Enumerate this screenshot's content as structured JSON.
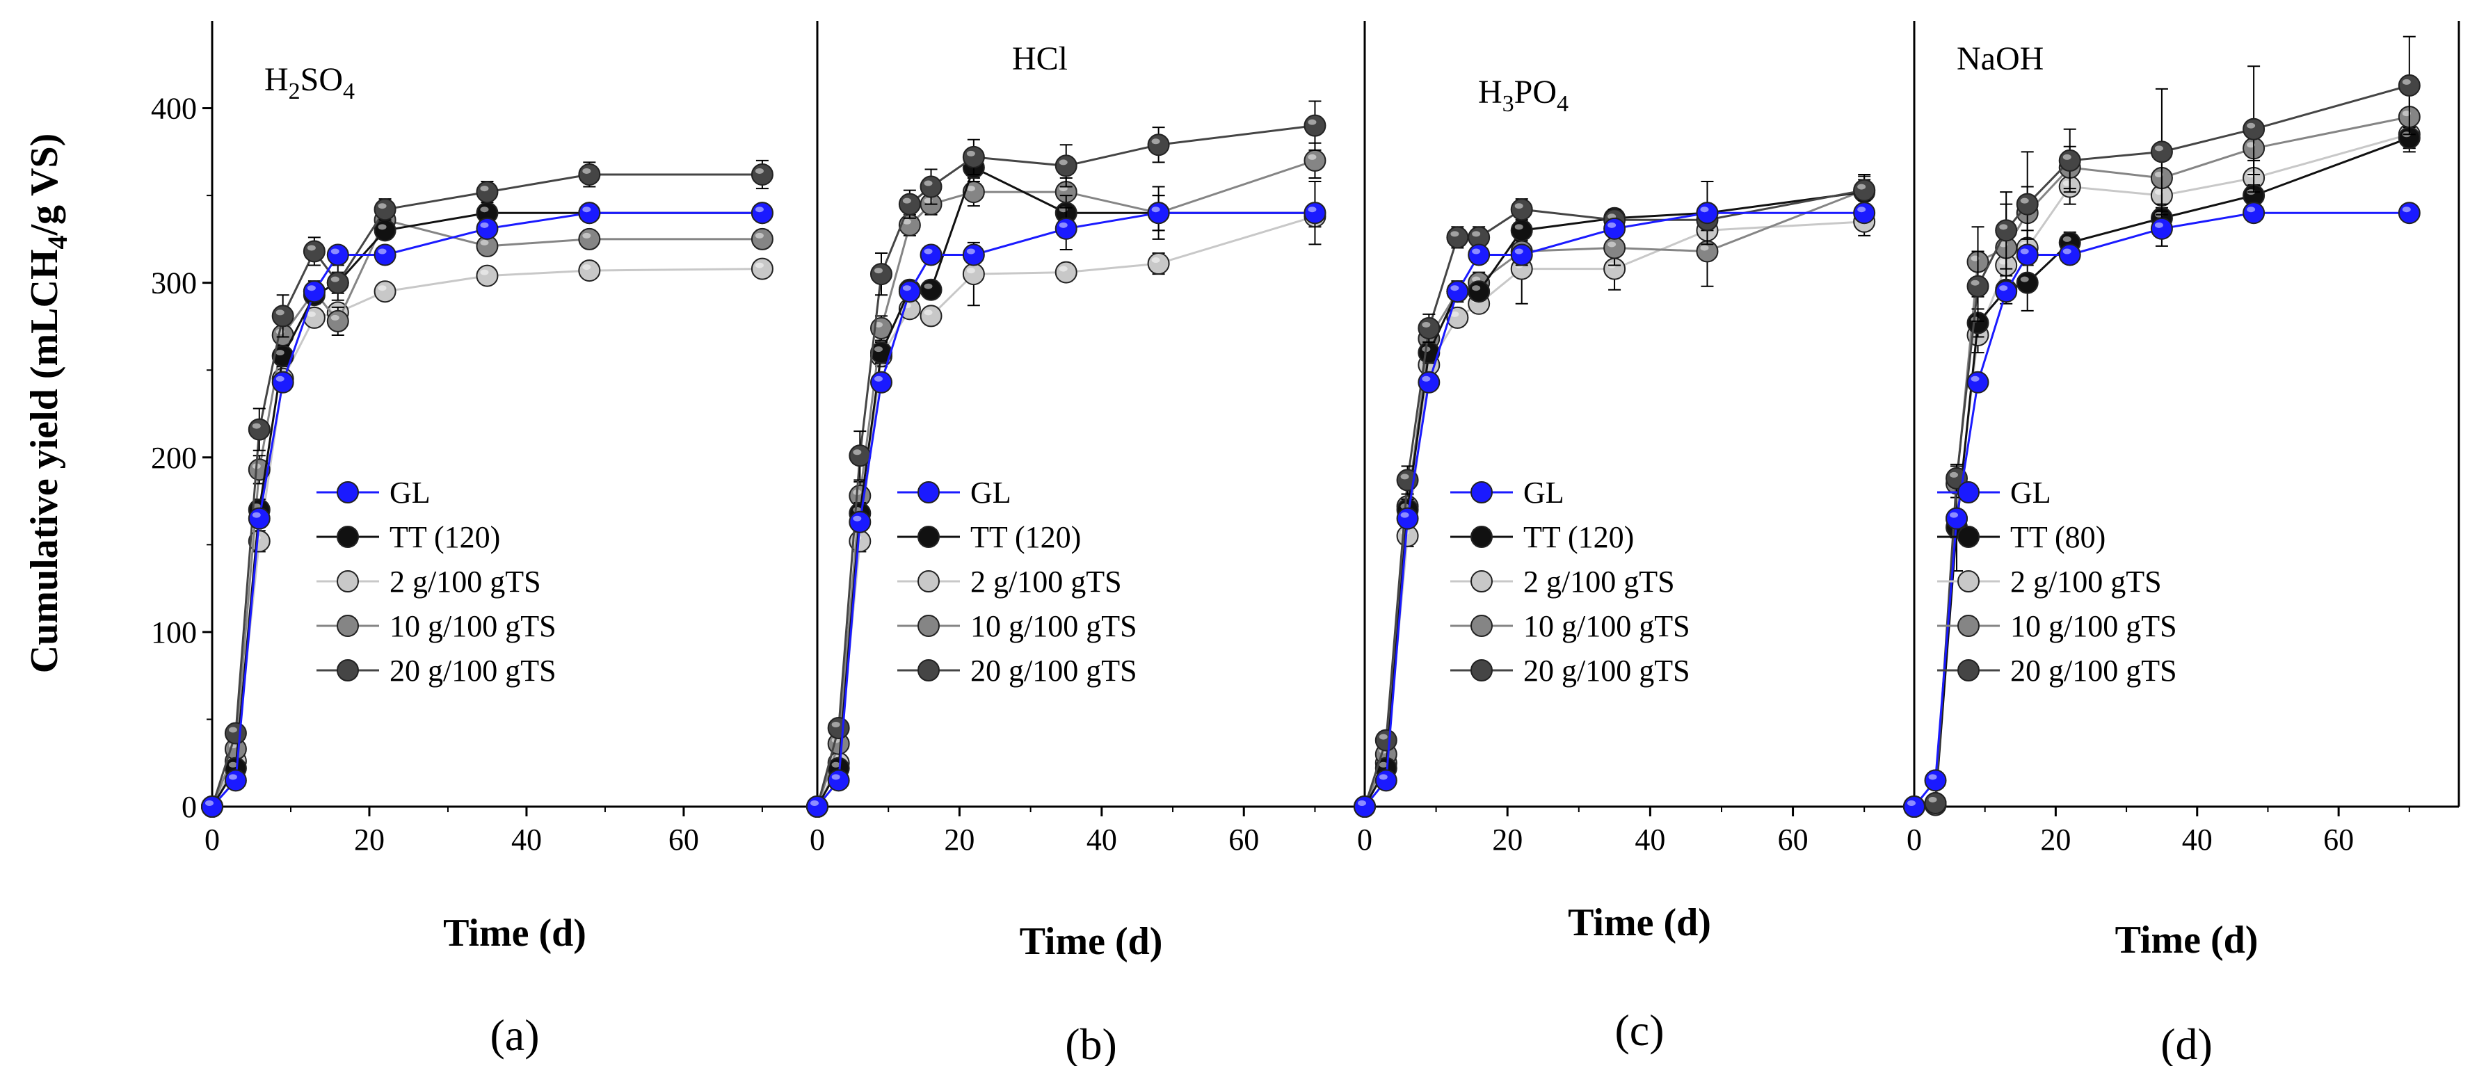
{
  "chart_data": {
    "type": "line",
    "ylabel": "Cumulative yield (mLCH4/g VS)",
    "ylabel_parts": {
      "pre": "Cumulative yield (mLCH",
      "sub": "4",
      "post": "/g VS)"
    },
    "xlabel": "Time (d)",
    "xlim": [
      0,
      77
    ],
    "ylim": [
      0,
      450
    ],
    "x_ticks": [
      0,
      20,
      40,
      60
    ],
    "x_tick_labels": [
      "0",
      "20",
      "40",
      "60"
    ],
    "y_ticks": [
      0,
      100,
      200,
      300,
      400
    ],
    "y_tick_labels": [
      "0",
      "100",
      "200",
      "300",
      "400"
    ],
    "x": [
      0,
      3,
      6,
      9,
      13,
      16,
      22,
      35,
      48,
      70
    ],
    "colors": {
      "GL": "#1a1aff",
      "TT": "#111111",
      "2 g/100 gTS": "#c8c8c8",
      "10 g/100 gTS": "#858585",
      "20 g/100 gTS": "#454545"
    },
    "panels": [
      {
        "sub_label": "(a)",
        "title": "H2SO4",
        "title_parts": [
          {
            "t": "H"
          },
          {
            "t": "2",
            "sub": true
          },
          {
            "t": "SO"
          },
          {
            "t": "4",
            "sub": true
          }
        ],
        "xlabel": "Time (d)",
        "series": [
          {
            "name": "GL",
            "values": [
              0,
              15,
              165,
              243,
              295,
              316,
              316,
              331,
              340,
              340
            ],
            "err": [
              0,
              2,
              4,
              4,
              4,
              4,
              3,
              3,
              3,
              3
            ]
          },
          {
            "name": "TT (120)",
            "values": [
              0,
              22,
              170,
              258,
              293,
              300,
              330,
              340,
              340,
              340
            ],
            "err": [
              0,
              3,
              6,
              6,
              5,
              6,
              5,
              4,
              4,
              4
            ]
          },
          {
            "name": "2 g/100 gTS",
            "values": [
              0,
              26,
              152,
              245,
              280,
              283,
              295,
              304,
              307,
              308
            ],
            "err": [
              0,
              3,
              6,
              5,
              5,
              5,
              4,
              4,
              4,
              4
            ]
          },
          {
            "name": "10 g/100 gTS",
            "values": [
              0,
              33,
              193,
              270,
              295,
              278,
              336,
              321,
              325,
              325
            ],
            "err": [
              0,
              4,
              8,
              7,
              6,
              8,
              6,
              5,
              5,
              5
            ]
          },
          {
            "name": "20 g/100 gTS",
            "values": [
              0,
              42,
              216,
              281,
              318,
              300,
              342,
              352,
              362,
              362
            ],
            "err": [
              0,
              5,
              12,
              12,
              8,
              10,
              6,
              6,
              7,
              8
            ]
          }
        ]
      },
      {
        "sub_label": "(b)",
        "title": "HCl",
        "title_parts": [
          {
            "t": "HCl"
          }
        ],
        "xlabel": "Time (d)",
        "series": [
          {
            "name": "GL",
            "values": [
              0,
              15,
              163,
              243,
              295,
              316,
              316,
              331,
              340,
              340
            ],
            "err": [
              0,
              2,
              4,
              4,
              4,
              5,
              5,
              12,
              10,
              5
            ]
          },
          {
            "name": "TT (120)",
            "values": [
              0,
              22,
              168,
              260,
              296,
              296,
              366,
              340,
              340,
              340
            ],
            "err": [
              0,
              3,
              6,
              6,
              5,
              5,
              8,
              10,
              15,
              18
            ]
          },
          {
            "name": "2 g/100 gTS",
            "values": [
              0,
              25,
              152,
              258,
              285,
              281,
              305,
              306,
              311,
              338
            ],
            "err": [
              0,
              3,
              6,
              6,
              5,
              5,
              18,
              5,
              6,
              6
            ]
          },
          {
            "name": "10 g/100 gTS",
            "values": [
              0,
              36,
              178,
              274,
              333,
              345,
              352,
              352,
              340,
              370
            ],
            "err": [
              0,
              4,
              8,
              7,
              6,
              6,
              8,
              8,
              10,
              10
            ]
          },
          {
            "name": "20 g/100 gTS",
            "values": [
              0,
              45,
              201,
              305,
              345,
              355,
              372,
              367,
              379,
              390
            ],
            "err": [
              0,
              5,
              14,
              12,
              8,
              10,
              10,
              12,
              10,
              14
            ]
          }
        ]
      },
      {
        "sub_label": "(c)",
        "title": "H3PO4",
        "title_parts": [
          {
            "t": "H"
          },
          {
            "t": "3",
            "sub": true
          },
          {
            "t": "PO"
          },
          {
            "t": "4",
            "sub": true
          }
        ],
        "xlabel": "Time (d)",
        "series": [
          {
            "name": "GL",
            "values": [
              0,
              15,
              165,
              243,
              295,
              316,
              316,
              331,
              340,
              340
            ],
            "err": [
              0,
              2,
              4,
              4,
              4,
              4,
              4,
              4,
              4,
              4
            ]
          },
          {
            "name": "TT (120)",
            "values": [
              0,
              22,
              170,
              260,
              295,
              295,
              330,
              337,
              340,
              352
            ],
            "err": [
              0,
              3,
              6,
              6,
              5,
              5,
              6,
              5,
              18,
              10
            ]
          },
          {
            "name": "2 g/100 gTS",
            "values": [
              0,
              25,
              155,
              253,
              280,
              288,
              308,
              308,
              330,
              335
            ],
            "err": [
              0,
              3,
              6,
              5,
              5,
              5,
              20,
              12,
              8,
              8
            ]
          },
          {
            "name": "10 g/100 gTS",
            "values": [
              0,
              30,
              172,
              268,
              295,
              300,
              318,
              320,
              318,
              353
            ],
            "err": [
              0,
              4,
              7,
              6,
              6,
              6,
              8,
              10,
              20,
              8
            ]
          },
          {
            "name": "20 g/100 gTS",
            "values": [
              0,
              38,
              187,
              274,
              326,
              326,
              342,
              336,
              336,
              353
            ],
            "err": [
              0,
              5,
              8,
              8,
              6,
              6,
              6,
              6,
              6,
              6
            ]
          }
        ]
      },
      {
        "sub_label": "(d)",
        "title": "NaOH",
        "title_parts": [
          {
            "t": "NaOH"
          }
        ],
        "xlabel": "Time (d)",
        "series": [
          {
            "name": "GL",
            "values": [
              0,
              15,
              165,
              243,
              295,
              316,
              316,
              331,
              340,
              340
            ],
            "err": [
              0,
              2,
              4,
              4,
              4,
              4,
              4,
              10,
              4,
              4
            ]
          },
          {
            "name": "TT (80)",
            "values": [
              0,
              2,
              160,
              277,
              296,
              300,
              323,
              337,
              350,
              383
            ],
            "err": [
              0,
              2,
              6,
              8,
              8,
              16,
              6,
              6,
              6,
              6
            ]
          },
          {
            "name": "2 g/100 gTS",
            "values": [
              0,
              1,
              165,
              270,
              310,
              320,
              355,
              350,
              360,
              385
            ],
            "err": [
              0,
              2,
              30,
              10,
              10,
              10,
              10,
              10,
              10,
              10
            ]
          },
          {
            "name": "10 g/100 gTS",
            "values": [
              0,
              1,
              185,
              312,
              320,
              340,
              366,
              360,
              377,
              395
            ],
            "err": [
              0,
              2,
              8,
              20,
              25,
              15,
              12,
              15,
              15,
              15
            ]
          },
          {
            "name": "20 g/100 gTS",
            "values": [
              0,
              2,
              188,
              298,
              330,
              345,
              370,
              375,
              388,
              413
            ],
            "err": [
              0,
              2,
              8,
              20,
              22,
              30,
              18,
              36,
              36,
              28
            ]
          }
        ]
      }
    ]
  }
}
